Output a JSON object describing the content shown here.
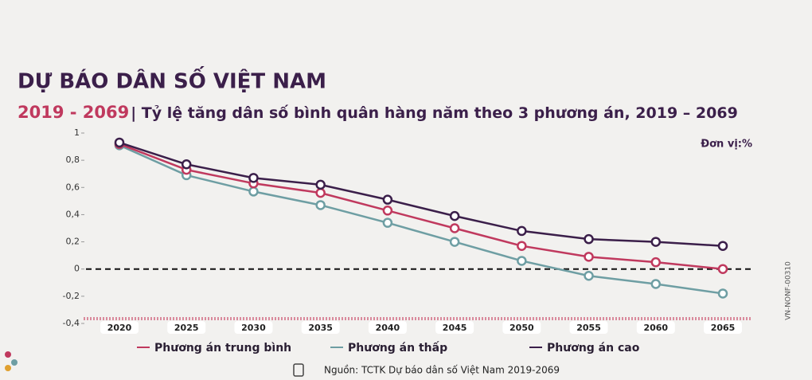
{
  "chart_data": {
    "type": "line",
    "title": "DỰ BÁO DÂN SỐ VIỆT NAM",
    "subtitle": "2019 - 2069",
    "subtitle_detail": "| Tỷ lệ tăng dân số bình quân hàng năm theo 3 phương án, 2019 – 2069",
    "unit": "Đơn vị:%",
    "source": "Nguồn: TCTK Dự báo dân số Việt Nam 2019-2069",
    "code": "VN-NONF-00310",
    "categories": [
      "2020",
      "2025",
      "2030",
      "2035",
      "2040",
      "2045",
      "2050",
      "2055",
      "2060",
      "2065"
    ],
    "series": [
      {
        "name": "Phương án trung bình",
        "color": "#c0395e",
        "values": [
          0.92,
          0.73,
          0.63,
          0.56,
          0.43,
          0.3,
          0.17,
          0.09,
          0.05,
          0.0
        ]
      },
      {
        "name": "Phương án thấp",
        "color": "#6e9ea3",
        "values": [
          0.91,
          0.69,
          0.57,
          0.47,
          0.34,
          0.2,
          0.06,
          -0.05,
          -0.11,
          -0.18
        ]
      },
      {
        "name": "Phương án cao",
        "color": "#3b1f4a",
        "values": [
          0.93,
          0.77,
          0.67,
          0.62,
          0.51,
          0.39,
          0.28,
          0.22,
          0.2,
          0.17
        ]
      }
    ],
    "ylim": [
      -0.4,
      1
    ],
    "yticks": [
      1,
      {
        "value": 0.8,
        "label": "0,8"
      },
      {
        "value": 0.6,
        "label": "0,6"
      },
      {
        "value": 0.4,
        "label": "0,4"
      },
      {
        "value": 0.2,
        "label": "0,2"
      },
      0,
      {
        "value": -0.2,
        "label": "-0,2"
      },
      {
        "value": -0.4,
        "label": "-0,4"
      }
    ],
    "zero_line": true,
    "grid": false
  }
}
